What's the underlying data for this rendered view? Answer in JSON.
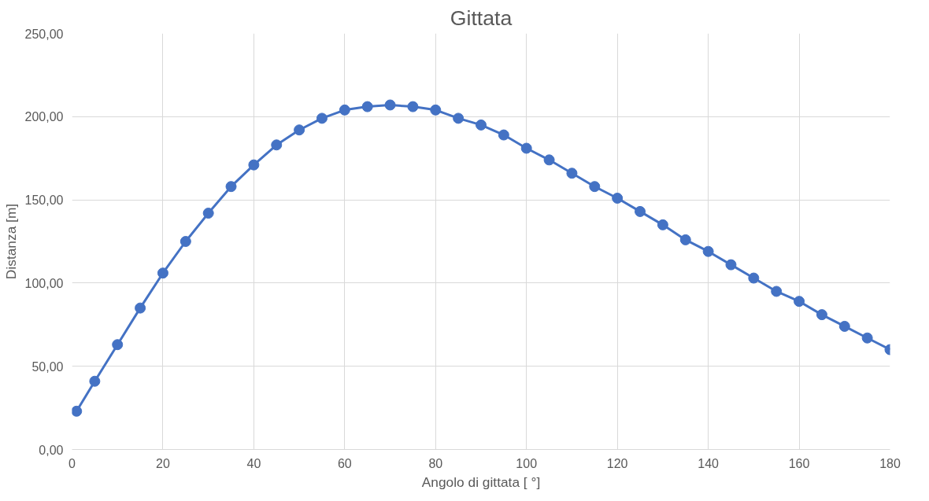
{
  "chart_data": {
    "type": "line",
    "title": "Gittata",
    "xlabel": "Angolo di gittata [ °]",
    "ylabel": "Distanza [m]",
    "x": [
      1,
      5,
      10,
      15,
      20,
      25,
      30,
      35,
      40,
      45,
      50,
      55,
      60,
      65,
      70,
      75,
      80,
      85,
      90,
      95,
      100,
      105,
      110,
      115,
      120,
      125,
      130,
      135,
      140,
      145,
      150,
      155,
      160,
      165,
      170,
      175,
      180
    ],
    "series": [
      {
        "color": "#4472c4",
        "values": [
          23,
          41,
          63,
          85,
          106,
          125,
          142,
          158,
          171,
          183,
          192,
          199,
          204,
          206,
          207,
          206,
          204,
          199,
          195,
          189,
          181,
          174,
          166,
          158,
          151,
          143,
          135,
          126,
          119,
          111,
          103,
          95,
          89,
          81,
          74,
          67,
          60
        ]
      }
    ],
    "xlim": [
      0,
      180
    ],
    "xticks": [
      0,
      20,
      40,
      60,
      80,
      100,
      120,
      140,
      160,
      180
    ],
    "ylim": [
      0,
      250
    ],
    "yticks": [
      {
        "value": 0,
        "label": "0,00"
      },
      {
        "value": 50,
        "label": "50,00"
      },
      {
        "value": 100,
        "label": "100,00"
      },
      {
        "value": 150,
        "label": "150,00"
      },
      {
        "value": 200,
        "label": "200,00"
      },
      {
        "value": 250,
        "label": "250,00"
      }
    ],
    "grid": true,
    "marker": "circle",
    "line_style": "solid"
  }
}
